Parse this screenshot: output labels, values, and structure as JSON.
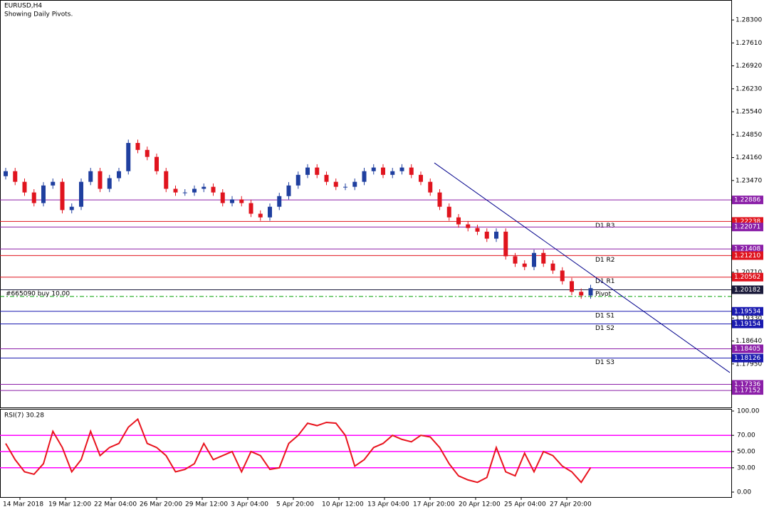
{
  "chart_data": [
    {
      "type": "candlestick",
      "title": "EURUSD,H4",
      "subtitle": "Showing Daily Pivots.",
      "x_labels": [
        "14 Mar 2018",
        "19 Mar 12:00",
        "22 Mar 04:00",
        "26 Mar 20:00",
        "29 Mar 12:00",
        "3 Apr 04:00",
        "5 Apr 20:00",
        "10 Apr 12:00",
        "13 Apr 04:00",
        "17 Apr 20:00",
        "20 Apr 12:00",
        "25 Apr 04:00",
        "27 Apr 20:00"
      ],
      "open": [
        1.236,
        1.2375,
        1.2343,
        1.2311,
        1.2279,
        1.2332,
        1.2343,
        1.2258,
        1.2268,
        1.2343,
        1.2375,
        1.2322,
        1.2354,
        1.2375,
        1.246,
        1.2439,
        1.2418,
        1.2375,
        1.2322,
        1.2311,
        1.2311,
        1.2322,
        1.2328,
        1.2311,
        1.2279,
        1.229,
        1.2279,
        1.2247,
        1.2236,
        1.2268,
        1.23,
        1.2332,
        1.2364,
        1.2386,
        1.2364,
        1.2343,
        1.2328,
        1.2328,
        1.2343,
        1.2375,
        1.2386,
        1.2364,
        1.2375,
        1.2386,
        1.2364,
        1.2343,
        1.2311,
        1.2268,
        1.2236,
        1.2215,
        1.2204,
        1.2193,
        1.2172,
        1.2193,
        1.2119,
        1.2097,
        1.2087,
        1.2129,
        1.2097,
        1.2076,
        1.2044,
        1.2012,
        1.2001
      ],
      "high": [
        1.2385,
        1.2385,
        1.2353,
        1.2321,
        1.2342,
        1.2353,
        1.2353,
        1.2278,
        1.2353,
        1.2385,
        1.2385,
        1.2364,
        1.2385,
        1.247,
        1.247,
        1.2449,
        1.2428,
        1.2385,
        1.2332,
        1.2321,
        1.2332,
        1.2338,
        1.2338,
        1.2321,
        1.23,
        1.23,
        1.2289,
        1.2257,
        1.2278,
        1.231,
        1.2342,
        1.2374,
        1.2396,
        1.2396,
        1.2374,
        1.2353,
        1.2338,
        1.2353,
        1.2385,
        1.2396,
        1.2396,
        1.2385,
        1.2396,
        1.2396,
        1.2374,
        1.2353,
        1.2321,
        1.2278,
        1.2246,
        1.2225,
        1.2214,
        1.2203,
        1.2203,
        1.2203,
        1.2129,
        1.2107,
        1.2139,
        1.2139,
        1.2107,
        1.2086,
        1.2054,
        1.2022,
        1.2033
      ],
      "low": [
        1.235,
        1.2333,
        1.2301,
        1.2269,
        1.2269,
        1.2322,
        1.2248,
        1.2248,
        1.2258,
        1.2333,
        1.2312,
        1.2312,
        1.2344,
        1.2365,
        1.2429,
        1.2408,
        1.2365,
        1.2312,
        1.2301,
        1.2301,
        1.2301,
        1.2312,
        1.2301,
        1.2269,
        1.2269,
        1.2269,
        1.2237,
        1.2226,
        1.2226,
        1.2258,
        1.229,
        1.2322,
        1.2354,
        1.2354,
        1.2333,
        1.2318,
        1.2318,
        1.2318,
        1.2333,
        1.2365,
        1.2354,
        1.2354,
        1.2365,
        1.2354,
        1.2333,
        1.2301,
        1.2258,
        1.2226,
        1.2205,
        1.2194,
        1.2183,
        1.2162,
        1.2162,
        1.2109,
        1.2087,
        1.2077,
        1.2077,
        1.2087,
        1.2066,
        1.2034,
        1.2002,
        1.1991,
        1.1991
      ],
      "close": [
        1.2375,
        1.2343,
        1.2311,
        1.2279,
        1.2332,
        1.2343,
        1.2258,
        1.2268,
        1.2343,
        1.2375,
        1.2322,
        1.2354,
        1.2375,
        1.246,
        1.2439,
        1.2418,
        1.2375,
        1.2322,
        1.2311,
        1.2311,
        1.2322,
        1.2328,
        1.2311,
        1.2279,
        1.229,
        1.2279,
        1.2247,
        1.2236,
        1.2268,
        1.23,
        1.2332,
        1.2364,
        1.2386,
        1.2364,
        1.2343,
        1.2328,
        1.2328,
        1.2343,
        1.2375,
        1.2386,
        1.2364,
        1.2375,
        1.2386,
        1.2364,
        1.2343,
        1.2311,
        1.2268,
        1.2236,
        1.2215,
        1.2204,
        1.2193,
        1.2172,
        1.2193,
        1.2119,
        1.2097,
        1.2087,
        1.2129,
        1.2097,
        1.2076,
        1.2044,
        1.2012,
        1.2001,
        1.2023
      ],
      "up_color": "#1f3f9f",
      "down_color": "#e0141e",
      "ylim": [
        1.1664,
        1.2888
      ],
      "yticks": [
        {
          "value": 1.283,
          "label": "1.28300"
        },
        {
          "value": 1.2761,
          "label": "1.27610"
        },
        {
          "value": 1.2692,
          "label": "1.26920"
        },
        {
          "value": 1.2623,
          "label": "1.26230"
        },
        {
          "value": 1.2554,
          "label": "1.25540"
        },
        {
          "value": 1.2485,
          "label": "1.24850"
        },
        {
          "value": 1.2416,
          "label": "1.24160"
        },
        {
          "value": 1.2347,
          "label": "1.23470"
        },
        {
          "value": 1.2071,
          "label": "1.20710"
        },
        {
          "value": 1.1933,
          "label": "1.19330"
        },
        {
          "value": 1.1864,
          "label": "1.18640"
        },
        {
          "value": 1.1795,
          "label": "1.17950"
        }
      ],
      "price_levels": [
        {
          "value": 1.22886,
          "label": "1.22886",
          "color": "#8b1fa8"
        },
        {
          "value": 1.22238,
          "label": "1.22238",
          "color": "#e0141e",
          "name": "D1 R3"
        },
        {
          "value": 1.22071,
          "label": "1.22071",
          "color": "#8b1fa8"
        },
        {
          "value": 1.21408,
          "label": "1.21408",
          "color": "#8b1fa8"
        },
        {
          "value": 1.2121,
          "label": "1.21210",
          "color": "#e0141e",
          "name": "D1 R2"
        },
        {
          "value": 1.20562,
          "label": "1.20562",
          "color": "#e0141e",
          "name": "D1 R1"
        },
        {
          "value": 1.20182,
          "label": "1.20182",
          "color": "#1a1a3a",
          "name": "Pivot"
        },
        {
          "value": 1.19534,
          "label": "1.19534",
          "color": "#1a1ab0",
          "name": "D1 S1"
        },
        {
          "value": 1.19154,
          "label": "1.19154",
          "color": "#1a1ab0",
          "name": "D1 S2"
        },
        {
          "value": 1.18405,
          "label": "1.18405",
          "color": "#8b1fa8"
        },
        {
          "value": 1.18126,
          "label": "1.18126",
          "color": "#1a1ab0",
          "name": "D1 S3"
        },
        {
          "value": 1.17336,
          "label": "1.17336",
          "color": "#8b1fa8"
        },
        {
          "value": 1.17152,
          "label": "1.17152",
          "color": "#8b1fa8"
        }
      ],
      "order": {
        "label": "#665090 buy 10.00",
        "value": 1.1998,
        "color": "#00a000"
      },
      "trendline": {
        "values": [
          1.24,
          1.1769
        ],
        "color": "#00008b"
      }
    },
    {
      "type": "line",
      "title": "RSI(7) 30.28",
      "color": "#e8141e",
      "values": [
        60,
        40,
        25,
        22,
        35,
        75,
        55,
        25,
        40,
        75,
        45,
        55,
        60,
        80,
        90,
        60,
        55,
        45,
        25,
        28,
        35,
        60,
        40,
        45,
        50,
        25,
        50,
        45,
        28,
        30,
        60,
        70,
        85,
        82,
        86,
        85,
        70,
        32,
        40,
        55,
        60,
        70,
        65,
        62,
        70,
        68,
        55,
        35,
        20,
        15,
        12,
        18,
        55,
        25,
        20,
        48,
        25,
        50,
        45,
        32,
        25,
        12,
        30.28
      ],
      "ylim": [
        0,
        100
      ],
      "yticks": [
        {
          "value": 100,
          "label": "100.00"
        },
        {
          "value": 70,
          "label": "70.00"
        },
        {
          "value": 50,
          "label": "50.00"
        },
        {
          "value": 30,
          "label": "30.00"
        },
        {
          "value": 0,
          "label": "0.00"
        }
      ],
      "levels": [
        70,
        50,
        30
      ],
      "level_color": "#ff00ff"
    }
  ]
}
